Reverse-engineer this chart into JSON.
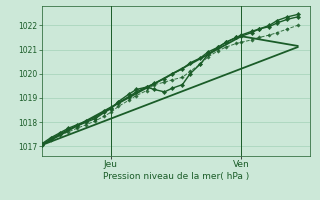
{
  "bg_color": "#cce8d8",
  "grid_color": "#99ccb0",
  "line_color": "#1a5c28",
  "title": "Pression niveau de la mer( hPa )",
  "ylim": [
    1016.6,
    1022.8
  ],
  "yticks": [
    1017,
    1018,
    1019,
    1020,
    1021,
    1022
  ],
  "xlim": [
    0.0,
    1.05
  ],
  "xtick_pos": [
    0.27,
    0.78
  ],
  "xtick_labels": [
    "Jeu",
    "Ven"
  ],
  "vlines": [
    0.27,
    0.78
  ],
  "series": [
    {
      "x": [
        0.0,
        0.035,
        0.07,
        0.105,
        0.14,
        0.175,
        0.21,
        0.245,
        0.27,
        0.3,
        0.34,
        0.37,
        0.41,
        0.44,
        0.48,
        0.51,
        0.55,
        0.58,
        0.62,
        0.65,
        0.69,
        0.72,
        0.76,
        0.78,
        0.82,
        0.85,
        0.89,
        0.92,
        0.96,
        1.0
      ],
      "y": [
        1017.1,
        1017.35,
        1017.55,
        1017.75,
        1017.9,
        1018.05,
        1018.2,
        1018.45,
        1018.6,
        1018.8,
        1019.05,
        1019.25,
        1019.45,
        1019.6,
        1019.8,
        1020.0,
        1020.2,
        1020.45,
        1020.65,
        1020.9,
        1021.1,
        1021.3,
        1021.5,
        1021.6,
        1021.75,
        1021.85,
        1021.95,
        1022.1,
        1022.25,
        1022.35
      ],
      "linestyle": "-",
      "marker": "D",
      "ms": 2.2,
      "lw": 1.0,
      "alpha": 1.0
    },
    {
      "x": [
        0.0,
        0.035,
        0.07,
        0.105,
        0.14,
        0.175,
        0.21,
        0.245,
        0.27,
        0.3,
        0.34,
        0.37,
        0.41,
        0.44,
        0.48,
        0.51,
        0.55,
        0.58,
        0.62,
        0.65,
        0.69,
        0.72,
        0.76,
        0.78,
        0.82,
        0.85,
        0.89,
        0.92,
        0.96,
        1.0
      ],
      "y": [
        1017.05,
        1017.3,
        1017.5,
        1017.7,
        1017.85,
        1018.0,
        1018.15,
        1018.4,
        1018.55,
        1018.85,
        1019.15,
        1019.35,
        1019.45,
        1019.35,
        1019.25,
        1019.4,
        1019.55,
        1020.0,
        1020.4,
        1020.8,
        1021.1,
        1021.3,
        1021.5,
        1021.55,
        1021.7,
        1021.85,
        1022.0,
        1022.2,
        1022.35,
        1022.45
      ],
      "linestyle": "-",
      "marker": "D",
      "ms": 2.2,
      "lw": 1.0,
      "alpha": 1.0
    },
    {
      "x": [
        0.0,
        0.035,
        0.07,
        0.105,
        0.14,
        0.175,
        0.21,
        0.245,
        0.27,
        0.3,
        0.34,
        0.37,
        0.41,
        0.44,
        0.48,
        0.51,
        0.55,
        0.58,
        0.62,
        0.65,
        0.69,
        0.72,
        0.76,
        0.78,
        0.82,
        0.85,
        0.89,
        0.92,
        0.96,
        1.0
      ],
      "y": [
        1017.05,
        1017.25,
        1017.45,
        1017.6,
        1017.75,
        1017.9,
        1018.05,
        1018.25,
        1018.4,
        1018.65,
        1018.9,
        1019.1,
        1019.3,
        1019.55,
        1019.65,
        1019.75,
        1019.85,
        1020.1,
        1020.4,
        1020.7,
        1020.95,
        1021.1,
        1021.25,
        1021.3,
        1021.4,
        1021.5,
        1021.6,
        1021.7,
        1021.85,
        1022.0
      ],
      "linestyle": "--",
      "marker": "D",
      "ms": 1.8,
      "lw": 0.7,
      "alpha": 0.85
    },
    {
      "x": [
        0.0,
        1.0
      ],
      "y": [
        1017.05,
        1021.1
      ],
      "linestyle": "-",
      "marker": "",
      "ms": 0,
      "lw": 1.3,
      "alpha": 1.0
    },
    {
      "x": [
        0.0,
        0.78,
        1.0
      ],
      "y": [
        1017.05,
        1021.55,
        1021.15
      ],
      "linestyle": "-",
      "marker": "",
      "ms": 0,
      "lw": 1.3,
      "alpha": 1.0
    }
  ]
}
